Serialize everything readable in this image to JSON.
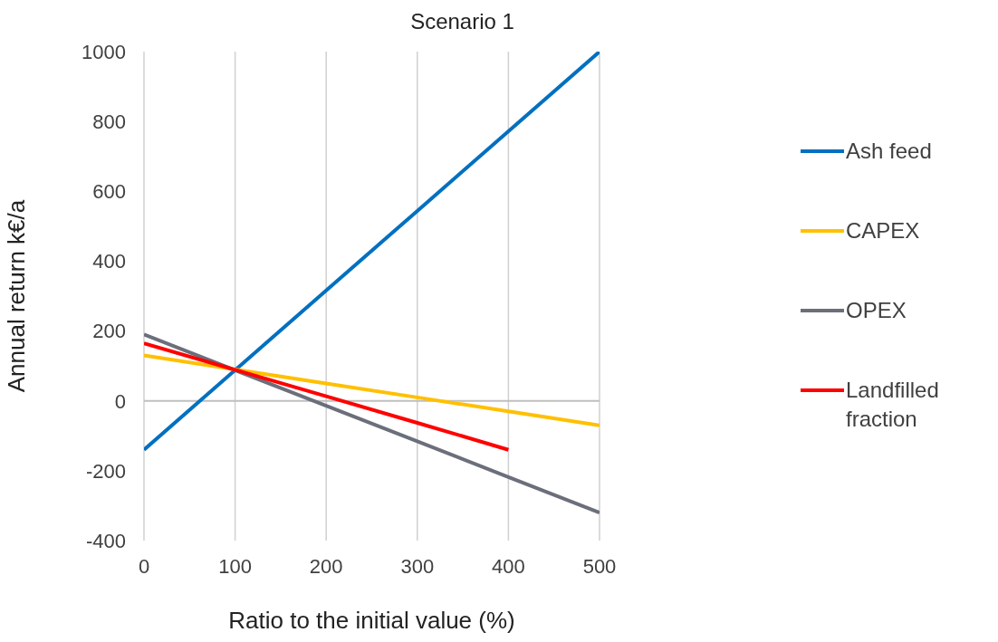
{
  "chart_data": {
    "type": "line",
    "title": "Scenario 1",
    "xlabel": "Ratio to the initial value (%)",
    "ylabel": "Annual return k€/a",
    "x": [
      0,
      100,
      200,
      300,
      400,
      500
    ],
    "series": [
      {
        "name": "Ash feed",
        "color": "#0070c0",
        "values": [
          -140,
          88,
          316,
          544,
          772,
          1000
        ]
      },
      {
        "name": "CAPEX",
        "color": "#ffc000",
        "values": [
          130,
          90,
          50,
          10,
          -30,
          -70
        ]
      },
      {
        "name": "OPEX",
        "color": "#6b6f7b",
        "values": [
          190,
          88,
          -14,
          -116,
          -218,
          -320
        ]
      },
      {
        "name": "Landfilled fraction",
        "color": "#ff0000",
        "values": [
          165,
          89,
          13,
          -63,
          -140,
          null
        ]
      }
    ],
    "xlim": [
      0,
      500
    ],
    "xticks": [
      0,
      100,
      200,
      300,
      400,
      500
    ],
    "ylim": [
      -400,
      1000
    ],
    "yticks": [
      -400,
      -200,
      0,
      200,
      400,
      600,
      800,
      1000
    ],
    "ref_lines": [
      {
        "axis": "y",
        "value": 0
      }
    ],
    "grid": "x",
    "legend": "right",
    "marker": "none",
    "line_style": "solid"
  }
}
